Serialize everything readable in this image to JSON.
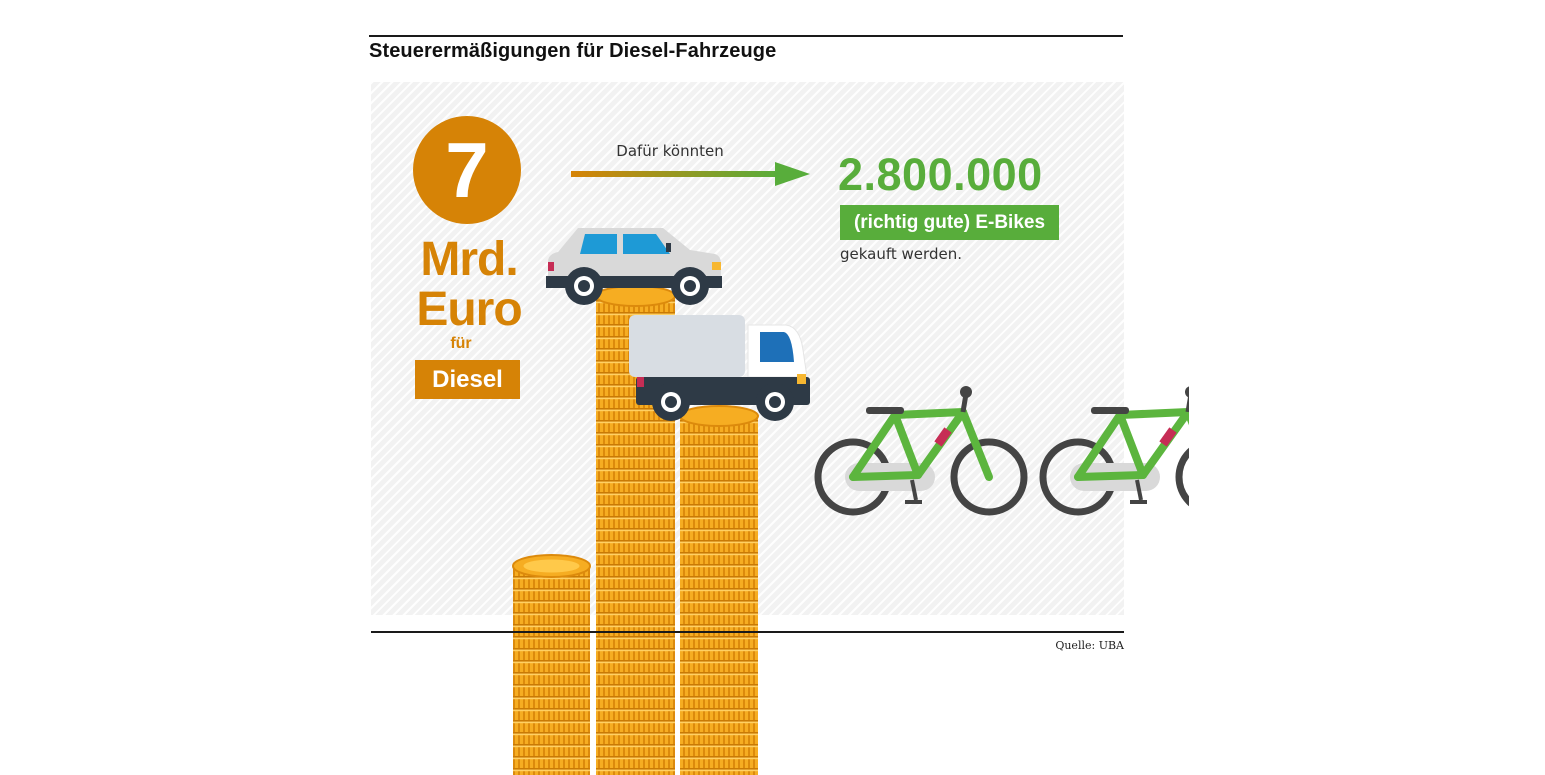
{
  "title": "Steuerermäßigungen für Diesel-Fahrzeuge",
  "amount": {
    "number": "7",
    "unit_line1": "Mrd.",
    "unit_line2": "Euro",
    "for": "für",
    "fuel": "Diesel"
  },
  "arrow_label": "Dafür könnten",
  "result": {
    "number": "2.800.000",
    "label": "(richtig gute) E-Bikes",
    "suffix": "gekauft werden."
  },
  "source": "Quelle: UBA",
  "colors": {
    "orange": "#d68306",
    "green": "#58ad3b",
    "coin": "#f4aa1e",
    "text": "#333333"
  },
  "icons": [
    "car-icon",
    "truck-icon",
    "coin-stack-icon",
    "bicycle-icon",
    "arrow-icon"
  ]
}
